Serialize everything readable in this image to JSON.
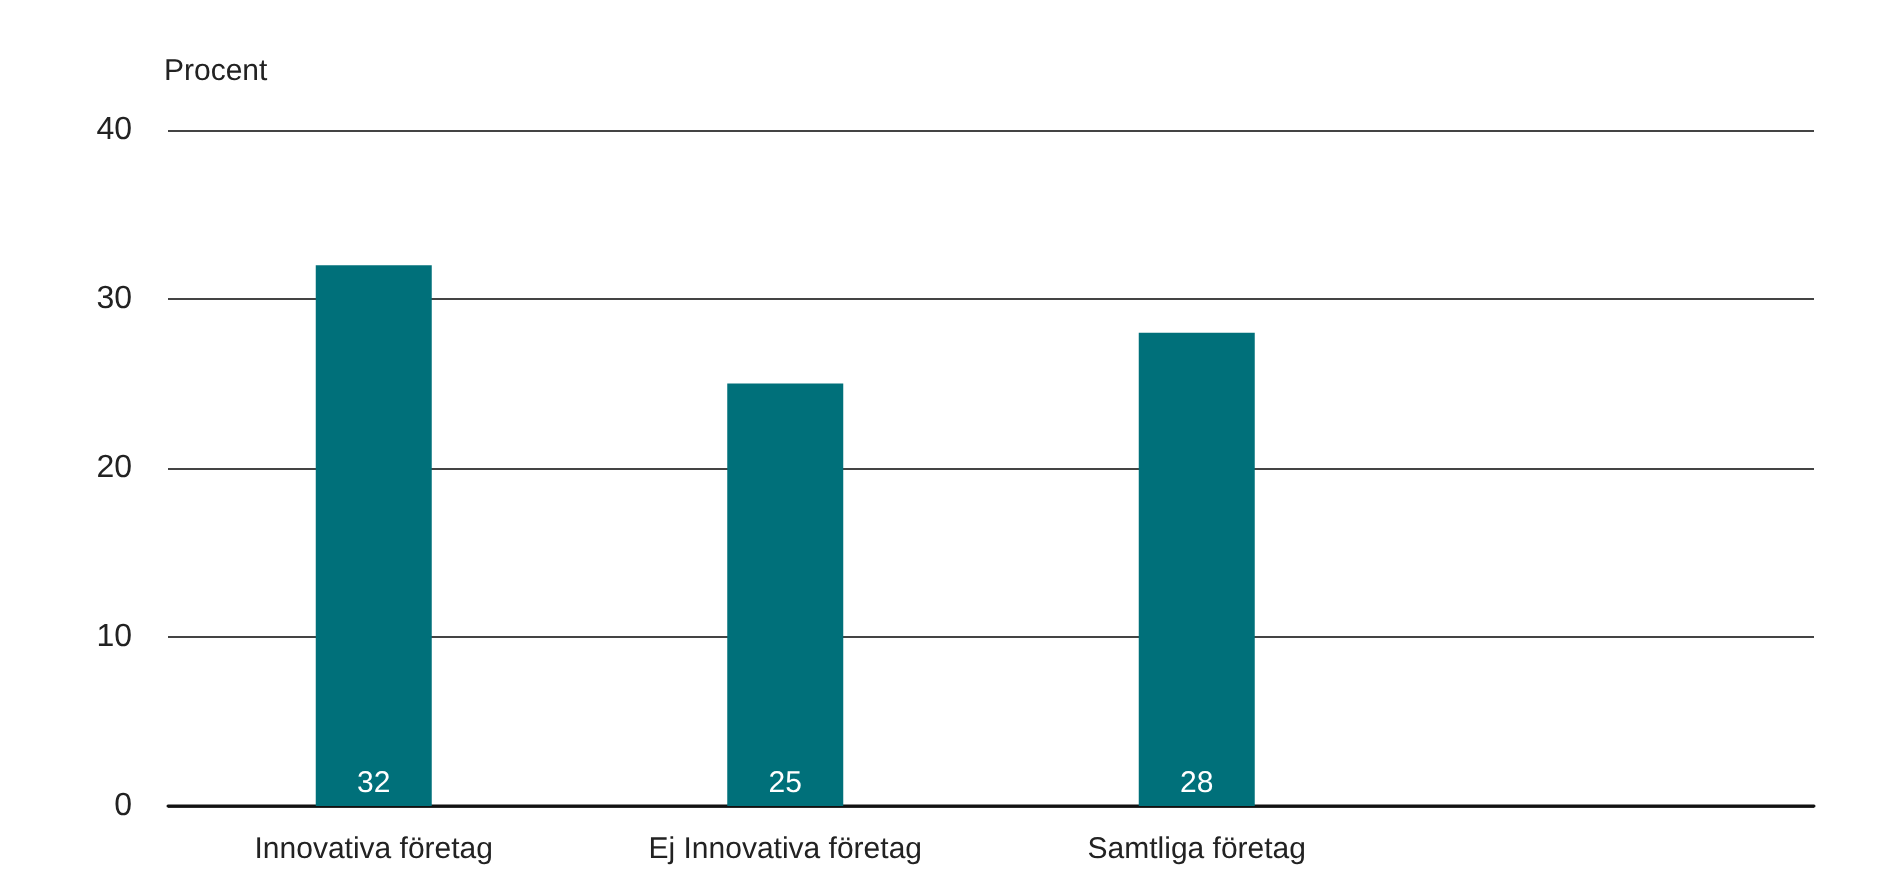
{
  "chart_data": {
    "type": "bar",
    "ylabel": "Procent",
    "categories": [
      "Innovativa företag",
      "Ej Innovativa företag",
      "Samtliga företag",
      null
    ],
    "values": [
      32,
      25,
      28,
      null
    ],
    "color": "#00707a",
    "ylim": [
      0,
      40
    ],
    "yticks": [
      0,
      10,
      20,
      30,
      40
    ],
    "grid": "y",
    "data_labels": true
  }
}
